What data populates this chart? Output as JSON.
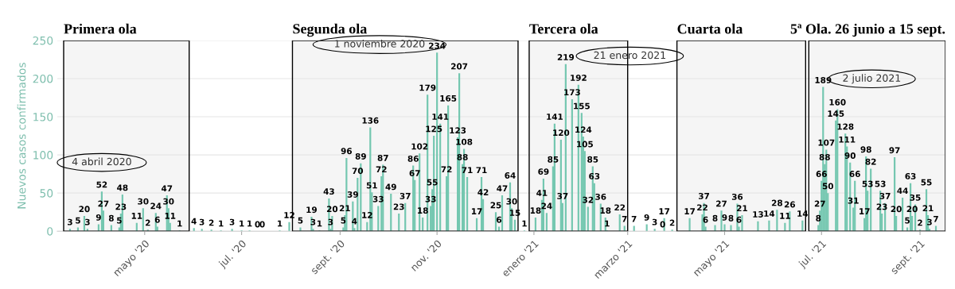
{
  "chart_data": {
    "type": "bar",
    "ylabel": "Nuevos casos confirmados",
    "color": "#74c7b0",
    "data_labels": true,
    "grid": "y",
    "ylim": [
      0,
      250
    ],
    "yticks": [
      0,
      50,
      100,
      150,
      200,
      250
    ],
    "xlim": [
      "2020-03-07",
      "2021-09-17"
    ],
    "xticks": [
      {
        "value": "2020-05-01",
        "label": "mayo '20"
      },
      {
        "value": "2020-07-01",
        "label": "jul. '20"
      },
      {
        "value": "2020-09-01",
        "label": "sept. '20"
      },
      {
        "value": "2020-11-01",
        "label": "nov. '20"
      },
      {
        "value": "2021-01-01",
        "label": "enero '21"
      },
      {
        "value": "2021-03-01",
        "label": "marzo '21"
      },
      {
        "value": "2021-05-01",
        "label": "mayo '21"
      },
      {
        "value": "2021-07-01",
        "label": "jul. '21"
      },
      {
        "value": "2021-09-01",
        "label": "sept. '21"
      }
    ],
    "x": [
      "2020-03-15",
      "2020-03-20",
      "2020-03-24",
      "2020-03-26",
      "2020-04-02",
      "2020-04-04",
      "2020-04-05",
      "2020-04-10",
      "2020-04-15",
      "2020-04-16",
      "2020-04-17",
      "2020-04-26",
      "2020-04-30",
      "2020-05-03",
      "2020-05-08",
      "2020-05-09",
      "2020-05-15",
      "2020-05-16",
      "2020-05-17",
      "2020-05-23",
      "2020-06-01",
      "2020-06-06",
      "2020-06-12",
      "2020-06-18",
      "2020-06-25",
      "2020-07-01",
      "2020-07-06",
      "2020-07-11",
      "2020-07-14",
      "2020-07-25",
      "2020-07-31",
      "2020-08-07",
      "2020-08-14",
      "2020-08-15",
      "2020-08-19",
      "2020-08-25",
      "2020-08-26",
      "2020-08-27",
      "2020-09-03",
      "2020-09-04",
      "2020-09-05",
      "2020-09-09",
      "2020-09-10",
      "2020-09-12",
      "2020-09-14",
      "2020-09-18",
      "2020-09-20",
      "2020-09-21",
      "2020-09-25",
      "2020-09-27",
      "2020-09-28",
      "2020-10-03",
      "2020-10-08",
      "2020-10-12",
      "2020-10-17",
      "2020-10-18",
      "2020-10-21",
      "2020-10-23",
      "2020-10-26",
      "2020-10-28",
      "2020-10-29",
      "2020-10-30",
      "2020-11-01",
      "2020-11-03",
      "2020-11-07",
      "2020-11-08",
      "2020-11-14",
      "2020-11-15",
      "2020-11-17",
      "2020-11-18",
      "2020-11-20",
      "2020-11-26",
      "2020-11-29",
      "2020-11-30",
      "2020-12-08",
      "2020-12-10",
      "2020-12-12",
      "2020-12-17",
      "2020-12-18",
      "2020-12-20",
      "2020-12-26",
      "2021-01-02",
      "2021-01-06",
      "2021-01-07",
      "2021-01-09",
      "2021-01-13",
      "2021-01-14",
      "2021-01-18",
      "2021-01-19",
      "2021-01-21",
      "2021-01-25",
      "2021-01-29",
      "2021-01-31",
      "2021-02-01",
      "2021-02-02",
      "2021-02-04",
      "2021-02-07",
      "2021-02-08",
      "2021-02-12",
      "2021-02-15",
      "2021-02-16",
      "2021-02-24",
      "2021-02-27",
      "2021-03-05",
      "2021-03-13",
      "2021-03-18",
      "2021-03-23",
      "2021-03-24",
      "2021-03-29",
      "2021-04-09",
      "2021-04-17",
      "2021-04-18",
      "2021-04-19",
      "2021-04-25",
      "2021-04-29",
      "2021-05-01",
      "2021-05-05",
      "2021-05-09",
      "2021-05-10",
      "2021-05-12",
      "2021-05-22",
      "2021-05-29",
      "2021-06-03",
      "2021-06-08",
      "2021-06-11",
      "2021-06-19",
      "2021-06-29",
      "2021-06-30",
      "2021-07-01",
      "2021-07-02",
      "2021-07-03",
      "2021-07-04",
      "2021-07-05",
      "2021-07-10",
      "2021-07-11",
      "2021-07-16",
      "2021-07-17",
      "2021-07-19",
      "2021-07-21",
      "2021-07-22",
      "2021-07-28",
      "2021-07-29",
      "2021-07-30",
      "2021-08-01",
      "2021-08-07",
      "2021-08-08",
      "2021-08-10",
      "2021-08-16",
      "2021-08-17",
      "2021-08-21",
      "2021-08-24",
      "2021-08-26",
      "2021-08-27",
      "2021-08-29",
      "2021-09-01",
      "2021-09-05",
      "2021-09-06",
      "2021-09-07",
      "2021-09-11"
    ],
    "values": [
      3,
      5,
      20,
      3,
      9,
      52,
      27,
      8,
      5,
      23,
      48,
      11,
      30,
      2,
      24,
      6,
      47,
      30,
      11,
      1,
      4,
      3,
      2,
      1,
      3,
      1,
      1,
      0,
      0,
      1,
      12,
      5,
      19,
      3,
      1,
      43,
      3,
      20,
      5,
      21,
      96,
      39,
      4,
      70,
      89,
      12,
      136,
      51,
      33,
      72,
      87,
      49,
      23,
      37,
      86,
      67,
      102,
      18,
      179,
      33,
      55,
      125,
      234,
      141,
      72,
      165,
      123,
      207,
      88,
      108,
      71,
      17,
      71,
      42,
      25,
      6,
      47,
      64,
      30,
      15,
      1,
      18,
      41,
      69,
      24,
      85,
      141,
      120,
      37,
      219,
      173,
      192,
      155,
      124,
      105,
      32,
      85,
      63,
      36,
      18,
      1,
      22,
      7,
      7,
      9,
      3,
      0,
      17,
      2,
      17,
      22,
      37,
      6,
      8,
      27,
      9,
      8,
      36,
      6,
      21,
      13,
      14,
      28,
      11,
      26,
      14,
      8,
      27,
      66,
      189,
      88,
      107,
      50,
      145,
      160,
      128,
      111,
      90,
      31,
      66,
      17,
      98,
      53,
      82,
      53,
      23,
      37,
      97,
      20,
      44,
      5,
      63,
      20,
      35,
      2,
      55,
      21,
      3,
      7
    ],
    "bands": [
      {
        "axis": "x",
        "from": "2020-03-11",
        "to": "2020-05-29",
        "label": "Primera ola"
      },
      {
        "axis": "x",
        "from": "2020-08-02",
        "to": "2020-12-22",
        "label": "Segunda ola"
      },
      {
        "axis": "x",
        "from": "2020-12-29",
        "to": "2021-03-01",
        "label": "Tercera ola"
      },
      {
        "axis": "x",
        "from": "2021-04-01",
        "to": "2021-06-21",
        "label": "Cuarta ola"
      },
      {
        "axis": "x",
        "from": "2021-06-23",
        "to": "2021-09-17",
        "label": "5ª Ola. 26 junio a 15 sept."
      }
    ],
    "annotations": [
      {
        "text": "4 abril 2020",
        "x": "2020-04-04",
        "y": 52
      },
      {
        "text": "1 noviembre 2020",
        "x": "2020-11-01",
        "y": 234
      },
      {
        "text": "21 enero 2021",
        "x": "2021-01-21",
        "y": 219
      },
      {
        "text": "2 julio 2021",
        "x": "2021-07-02",
        "y": 189
      }
    ]
  }
}
